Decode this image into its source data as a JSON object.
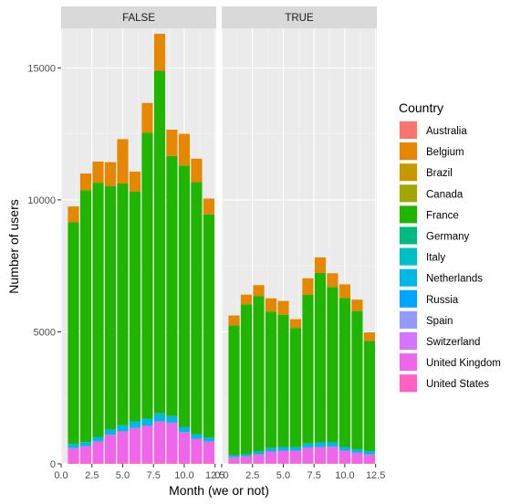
{
  "chart_data": {
    "type": "bar",
    "stacked": true,
    "facets": [
      "FALSE",
      "TRUE"
    ],
    "xlabel": "Month (we or not)",
    "ylabel": "Number of users",
    "x_ticks": [
      "0.0",
      "2.5",
      "5.0",
      "7.5",
      "10.0",
      "12.5"
    ],
    "y_ticks": [
      "0",
      "5000",
      "10000",
      "15000"
    ],
    "xlim": [
      0,
      12.6
    ],
    "ylim": [
      0,
      16500
    ],
    "grid": true,
    "legend": {
      "title": "Country",
      "placement": "right",
      "entries": [
        "Australia",
        "Belgium",
        "Brazil",
        "Canada",
        "France",
        "Germany",
        "Italy",
        "Netherlands",
        "Russia",
        "Spain",
        "Switzerland",
        "United Kingdom",
        "United States"
      ]
    },
    "colors": {
      "Australia": "#F8766D",
      "Belgium": "#E58700",
      "Brazil": "#C99800",
      "Canada": "#A3A500",
      "France": "#1FB500",
      "Germany": "#00BA80",
      "Italy": "#00BFC4",
      "Netherlands": "#00B8E5",
      "Russia": "#00A5FF",
      "Spain": "#949BFF",
      "Switzerland": "#D575FE",
      "United Kingdom": "#F066EA",
      "United States": "#FF61C3"
    },
    "months": [
      1,
      2,
      3,
      4,
      5,
      6,
      7,
      8,
      9,
      10,
      11,
      12
    ],
    "panels": [
      {
        "facet": "FALSE",
        "series": [
          {
            "name": "United States",
            "values": [
              50,
              50,
              50,
              50,
              60,
              60,
              60,
              60,
              60,
              50,
              50,
              50
            ]
          },
          {
            "name": "United Kingdom",
            "values": [
              550,
              620,
              800,
              1050,
              1170,
              1300,
              1380,
              1550,
              1500,
              1150,
              900,
              800
            ]
          },
          {
            "name": "Netherlands",
            "values": [
              150,
              150,
              170,
              200,
              230,
              250,
              270,
              300,
              250,
              200,
              170,
              150
            ]
          },
          {
            "name": "France",
            "values": [
              8400,
              9550,
              9630,
              9230,
              9160,
              8700,
              10830,
              12980,
              9850,
              9900,
              9550,
              8450
            ]
          },
          {
            "name": "Belgium",
            "values": [
              600,
              630,
              800,
              900,
              1680,
              760,
              1130,
              1400,
              1000,
              1200,
              890,
              600
            ]
          }
        ]
      },
      {
        "facet": "TRUE",
        "series": [
          {
            "name": "United States",
            "values": [
              30,
              30,
              30,
              30,
              30,
              30,
              30,
              30,
              30,
              30,
              30,
              30
            ]
          },
          {
            "name": "United Kingdom",
            "values": [
              220,
              260,
              330,
              440,
              470,
              470,
              580,
              610,
              620,
              470,
              390,
              330
            ]
          },
          {
            "name": "Netherlands",
            "values": [
              80,
              90,
              110,
              130,
              140,
              130,
              160,
              170,
              160,
              140,
              130,
              120
            ]
          },
          {
            "name": "France",
            "values": [
              4920,
              5660,
              5890,
              5170,
              5010,
              4520,
              5630,
              6420,
              5890,
              5640,
              5240,
              4180
            ]
          },
          {
            "name": "Belgium",
            "values": [
              370,
              370,
              410,
              500,
              520,
              330,
              630,
              590,
              520,
              520,
              430,
              320
            ]
          }
        ]
      }
    ]
  }
}
